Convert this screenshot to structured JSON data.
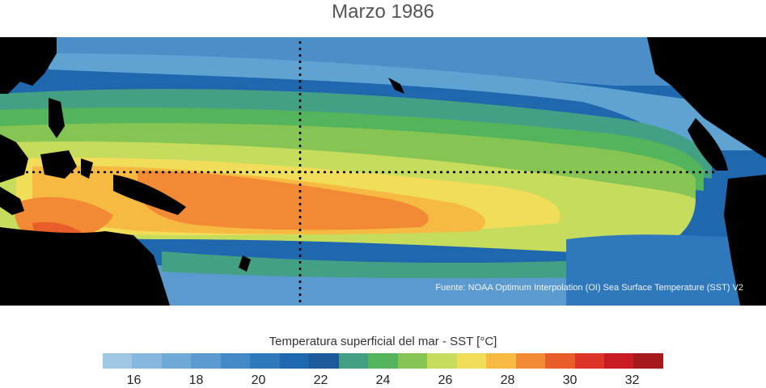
{
  "title": "Marzo 1986",
  "source": "Fuente: NOAA Optimum Interpolation (OI) Sea Surface Temperature (SST) V2",
  "colorbar": {
    "label": "Temperatura superficial del mar - SST  [°C]",
    "min": 15,
    "max": 33,
    "colors": [
      "#9fc6e2",
      "#86b8dd",
      "#6fa9d6",
      "#5a9acf",
      "#4389c6",
      "#2f78bb",
      "#1f68ae",
      "#1d5a99",
      "#43a084",
      "#53b45b",
      "#86c454",
      "#c5dc5c",
      "#f0dd5a",
      "#f6b942",
      "#f28934",
      "#e85d2a",
      "#dc3527",
      "#c91c22",
      "#a61a1e"
    ],
    "ticks": [
      "16",
      "18",
      "20",
      "22",
      "24",
      "26",
      "28",
      "30",
      "32"
    ]
  }
}
